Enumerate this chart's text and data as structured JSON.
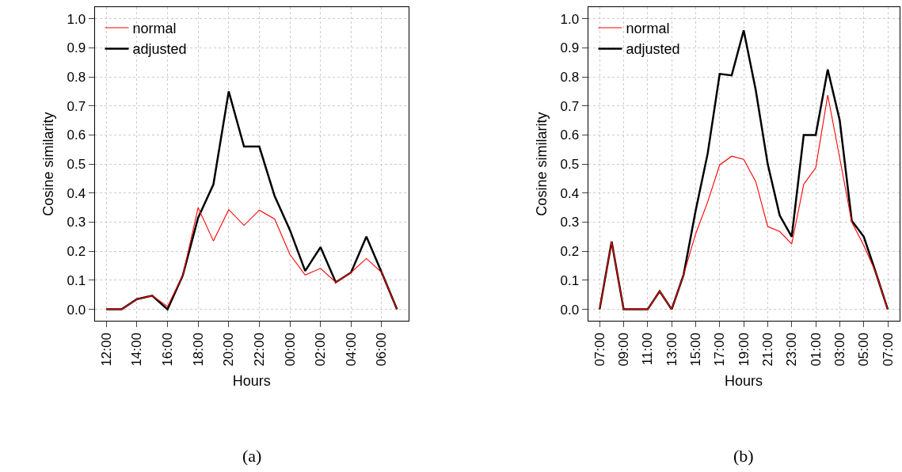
{
  "chart_data": [
    {
      "type": "line",
      "xlabel": "Hours",
      "ylabel": "Cosine similarity",
      "annotations": [
        "(a)"
      ],
      "categories": [
        "12:00",
        null,
        "14:00",
        null,
        "16:00",
        null,
        "18:00",
        null,
        "20:00",
        null,
        "22:00",
        null,
        "00:00",
        null,
        "02:00",
        null,
        "04:00",
        null,
        "06:00",
        null
      ],
      "series": [
        {
          "name": "normal",
          "color": "#ff0000",
          "values": [
            0,
            0,
            0.035,
            0.047,
            0.01,
            0.117,
            0.35,
            0.235,
            0.343,
            0.289,
            0.341,
            0.311,
            0.189,
            0.118,
            0.141,
            0.093,
            0.127,
            0.175,
            0.127,
            0
          ]
        },
        {
          "name": "adjusted",
          "color": "#000000",
          "values": [
            0,
            0,
            0.035,
            0.047,
            0,
            0.117,
            0.315,
            0.43,
            0.75,
            0.56,
            0.56,
            0.39,
            0.273,
            0.132,
            0.214,
            0.093,
            0.127,
            0.25,
            0.127,
            0
          ]
        }
      ],
      "ylim": [
        -0.04,
        1.04
      ],
      "yticks": [
        {
          "value": 0,
          "label": "0.0"
        },
        {
          "value": 0.1,
          "label": "0.1"
        },
        {
          "value": 0.2,
          "label": "0.2"
        },
        {
          "value": 0.3,
          "label": "0.3"
        },
        {
          "value": 0.4,
          "label": "0.4"
        },
        {
          "value": 0.5,
          "label": "0.5"
        },
        {
          "value": 0.6,
          "label": "0.6"
        },
        {
          "value": 0.7,
          "label": "0.7"
        },
        {
          "value": 0.8,
          "label": "0.8"
        },
        {
          "value": 0.9,
          "label": "0.9"
        },
        {
          "value": 1,
          "label": "1.0"
        }
      ],
      "grid": true,
      "legend": "top left",
      "marker": "none",
      "line_style": "solid"
    },
    {
      "type": "line",
      "xlabel": "Hours",
      "ylabel": "Cosine similarity",
      "annotations": [
        "(b)"
      ],
      "categories": [
        "07:00",
        null,
        "09:00",
        null,
        "11:00",
        null,
        "13:00",
        null,
        "15:00",
        null,
        "17:00",
        null,
        "19:00",
        null,
        "21:00",
        null,
        "23:00",
        null,
        "01:00",
        null,
        "03:00",
        null,
        "05:00",
        null,
        "07:00"
      ],
      "series": [
        {
          "name": "normal",
          "color": "#ff0000",
          "values": [
            0,
            0.233,
            0,
            0,
            0,
            0.062,
            0,
            0.12,
            0.26,
            0.37,
            0.497,
            0.527,
            0.516,
            0.44,
            0.285,
            0.268,
            0.225,
            0.43,
            0.487,
            0.737,
            0.52,
            0.3,
            0.22,
            0.127,
            0
          ]
        },
        {
          "name": "adjusted",
          "color": "#000000",
          "values": [
            0,
            0.233,
            0,
            0,
            0,
            0.062,
            0,
            0.12,
            0.34,
            0.536,
            0.81,
            0.805,
            0.96,
            0.755,
            0.5,
            0.323,
            0.25,
            0.6,
            0.6,
            0.825,
            0.65,
            0.305,
            0.25,
            0.127,
            0
          ]
        }
      ],
      "ylim": [
        -0.04,
        1.04
      ],
      "yticks": [
        {
          "value": 0,
          "label": "0.0"
        },
        {
          "value": 0.1,
          "label": "0.1"
        },
        {
          "value": 0.2,
          "label": "0.2"
        },
        {
          "value": 0.3,
          "label": "0.3"
        },
        {
          "value": 0.4,
          "label": "0.4"
        },
        {
          "value": 0.5,
          "label": "0.5"
        },
        {
          "value": 0.6,
          "label": "0.6"
        },
        {
          "value": 0.7,
          "label": "0.7"
        },
        {
          "value": 0.8,
          "label": "0.8"
        },
        {
          "value": 0.9,
          "label": "0.9"
        },
        {
          "value": 1,
          "label": "1.0"
        }
      ],
      "grid": true,
      "legend": "top left",
      "marker": "none",
      "line_style": "solid"
    }
  ]
}
